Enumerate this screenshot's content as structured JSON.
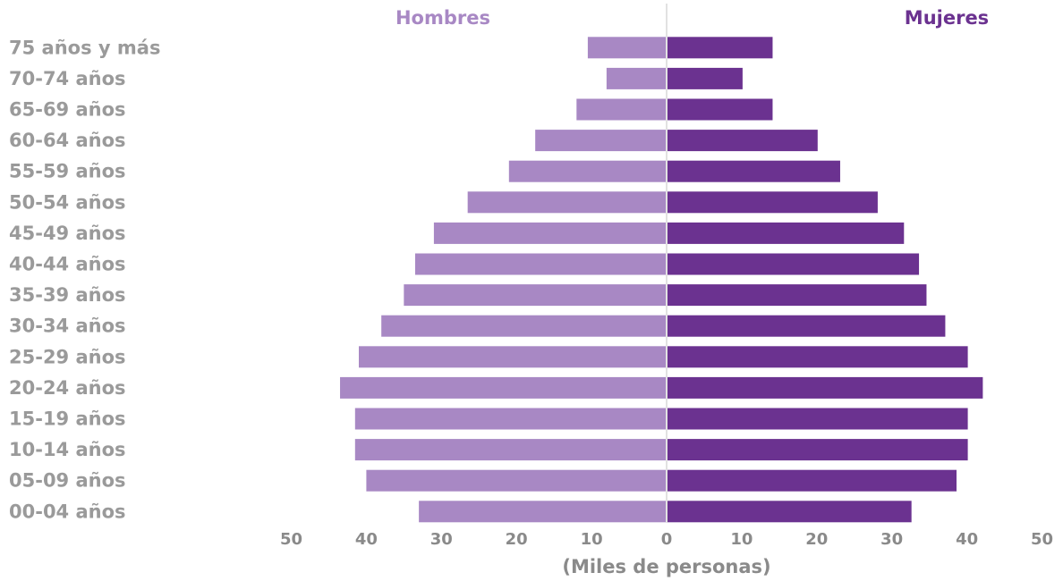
{
  "chart_data": {
    "type": "bar",
    "orientation": "horizontal",
    "style": "population-pyramid",
    "categories": [
      "75 años y más",
      "70-74 años",
      "65-69 años",
      "60-64 años",
      "55-59 años",
      "50-54 años",
      "45-49 años",
      "40-44 años",
      "35-39 años",
      "30-34 años",
      "25-29 años",
      "20-24 años",
      "15-19 años",
      "10-14 años",
      "05-09 años",
      "00-04 años"
    ],
    "series": [
      {
        "name": "Hombres",
        "color": "#a888c4",
        "side": "left",
        "values": [
          10.5,
          8,
          12,
          17.5,
          21,
          26.5,
          31,
          33.5,
          35,
          38,
          41,
          43.5,
          41.5,
          41.5,
          40,
          33
        ]
      },
      {
        "name": "Mujeres",
        "color": "#6b3290",
        "side": "right",
        "values": [
          14,
          10,
          14,
          20,
          23,
          28,
          31.5,
          33.5,
          34.5,
          37,
          40,
          42,
          40,
          40,
          38.5,
          32.5
        ]
      }
    ],
    "xlabel": "(Miles de personas)",
    "ylabel": "",
    "xlim": [
      -50,
      50
    ],
    "ticks": [
      50,
      40,
      30,
      20,
      10,
      0,
      10,
      20,
      30,
      40,
      50
    ],
    "grid": false,
    "legend_position": "top"
  }
}
